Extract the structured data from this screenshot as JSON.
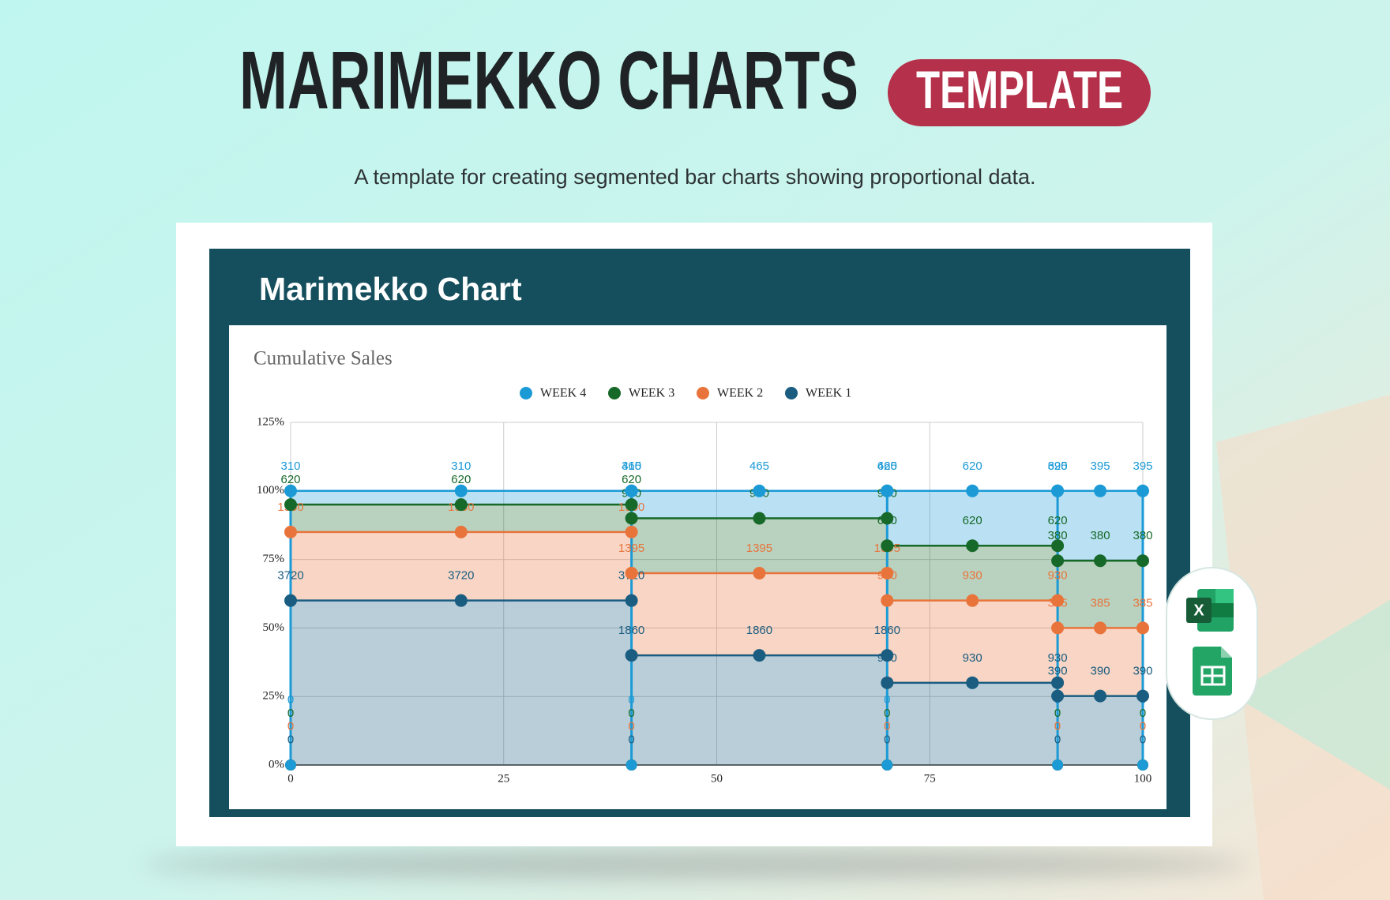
{
  "header": {
    "title": "MARIMEKKO CHARTS",
    "badge": "TEMPLATE",
    "subtitle": "A template for creating segmented bar charts showing proportional data."
  },
  "panel": {
    "title": "Marimekko Chart"
  },
  "chart_data": {
    "type": "marimekko",
    "title": "Cumulative Sales",
    "series": [
      {
        "name": "WEEK 4",
        "color": "#1b9ad6",
        "values": [
          310,
          465,
          620,
          395
        ],
        "boundary_labels": [
          0,
          0,
          0,
          0,
          0
        ]
      },
      {
        "name": "WEEK 3",
        "color": "#17692a",
        "values": [
          620,
          930,
          620,
          380
        ],
        "boundary_labels": [
          0,
          0,
          0,
          0,
          0
        ]
      },
      {
        "name": "WEEK 2",
        "color": "#e8743b",
        "values": [
          1550,
          1395,
          930,
          385
        ],
        "boundary_labels": [
          0,
          0,
          0,
          0,
          0
        ]
      },
      {
        "name": "WEEK 1",
        "color": "#1a5d80",
        "values": [
          3720,
          1860,
          930,
          390
        ],
        "boundary_labels": [
          0,
          0,
          0,
          0,
          0
        ]
      }
    ],
    "xlim": [
      0,
      100
    ],
    "xticks": [
      0,
      25,
      50,
      75,
      100
    ],
    "ylim": [
      0,
      125
    ],
    "yticks": [
      {
        "value": 0,
        "label": "0%"
      },
      {
        "value": 25,
        "label": "25%"
      },
      {
        "value": 50,
        "label": "50%"
      },
      {
        "value": 75,
        "label": "75%"
      },
      {
        "value": 100,
        "label": "100%"
      },
      {
        "value": 125,
        "label": "125%"
      }
    ],
    "grid": true
  }
}
